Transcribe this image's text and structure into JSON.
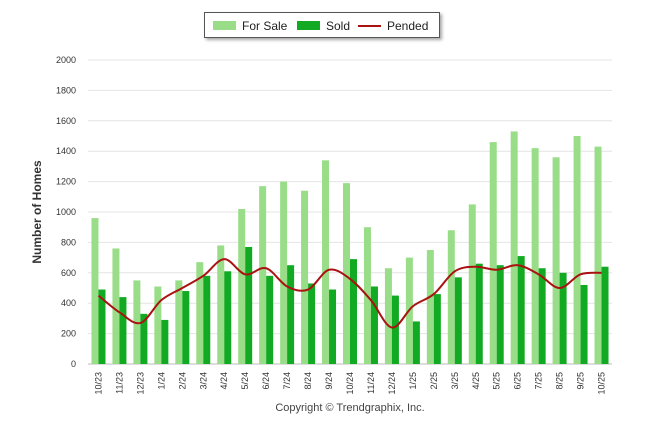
{
  "chart_data": {
    "type": "bar",
    "title": "",
    "xlabel": "",
    "ylabel": "Number of Homes",
    "ylim": [
      0,
      2000
    ],
    "yticks": [
      0,
      200,
      400,
      600,
      800,
      1000,
      1200,
      1400,
      1600,
      1800,
      2000
    ],
    "grid": true,
    "legend_position": "top-center",
    "categories": [
      "10/23",
      "11/23",
      "12/23",
      "1/24",
      "2/24",
      "3/24",
      "4/24",
      "5/24",
      "6/24",
      "7/24",
      "8/24",
      "9/24",
      "10/24",
      "11/24",
      "12/24",
      "1/25",
      "2/25",
      "3/25",
      "4/25",
      "5/25",
      "6/25",
      "7/25",
      "8/25",
      "9/25",
      "10/25"
    ],
    "series": [
      {
        "name": "For Sale",
        "kind": "bar",
        "color": "#99dd88",
        "values": [
          960,
          760,
          550,
          510,
          550,
          670,
          780,
          1020,
          1170,
          1200,
          1140,
          1340,
          1190,
          900,
          630,
          700,
          750,
          880,
          1050,
          1460,
          1530,
          1420,
          1360,
          1500,
          1430
        ]
      },
      {
        "name": "Sold",
        "kind": "bar",
        "color": "#11aa22",
        "values": [
          490,
          440,
          330,
          290,
          480,
          580,
          610,
          770,
          580,
          650,
          530,
          490,
          690,
          510,
          450,
          280,
          460,
          570,
          660,
          650,
          710,
          630,
          600,
          520,
          640
        ]
      },
      {
        "name": "Pended",
        "kind": "line",
        "color": "#aa1111",
        "values": [
          450,
          340,
          270,
          420,
          500,
          580,
          690,
          590,
          630,
          510,
          490,
          620,
          560,
          420,
          240,
          380,
          460,
          610,
          640,
          620,
          650,
          590,
          500,
          590,
          600
        ]
      }
    ]
  },
  "legend": {
    "for_sale": "For Sale",
    "sold": "Sold",
    "pended": "Pended"
  },
  "credit": "Copyright © Trendgraphix, Inc."
}
